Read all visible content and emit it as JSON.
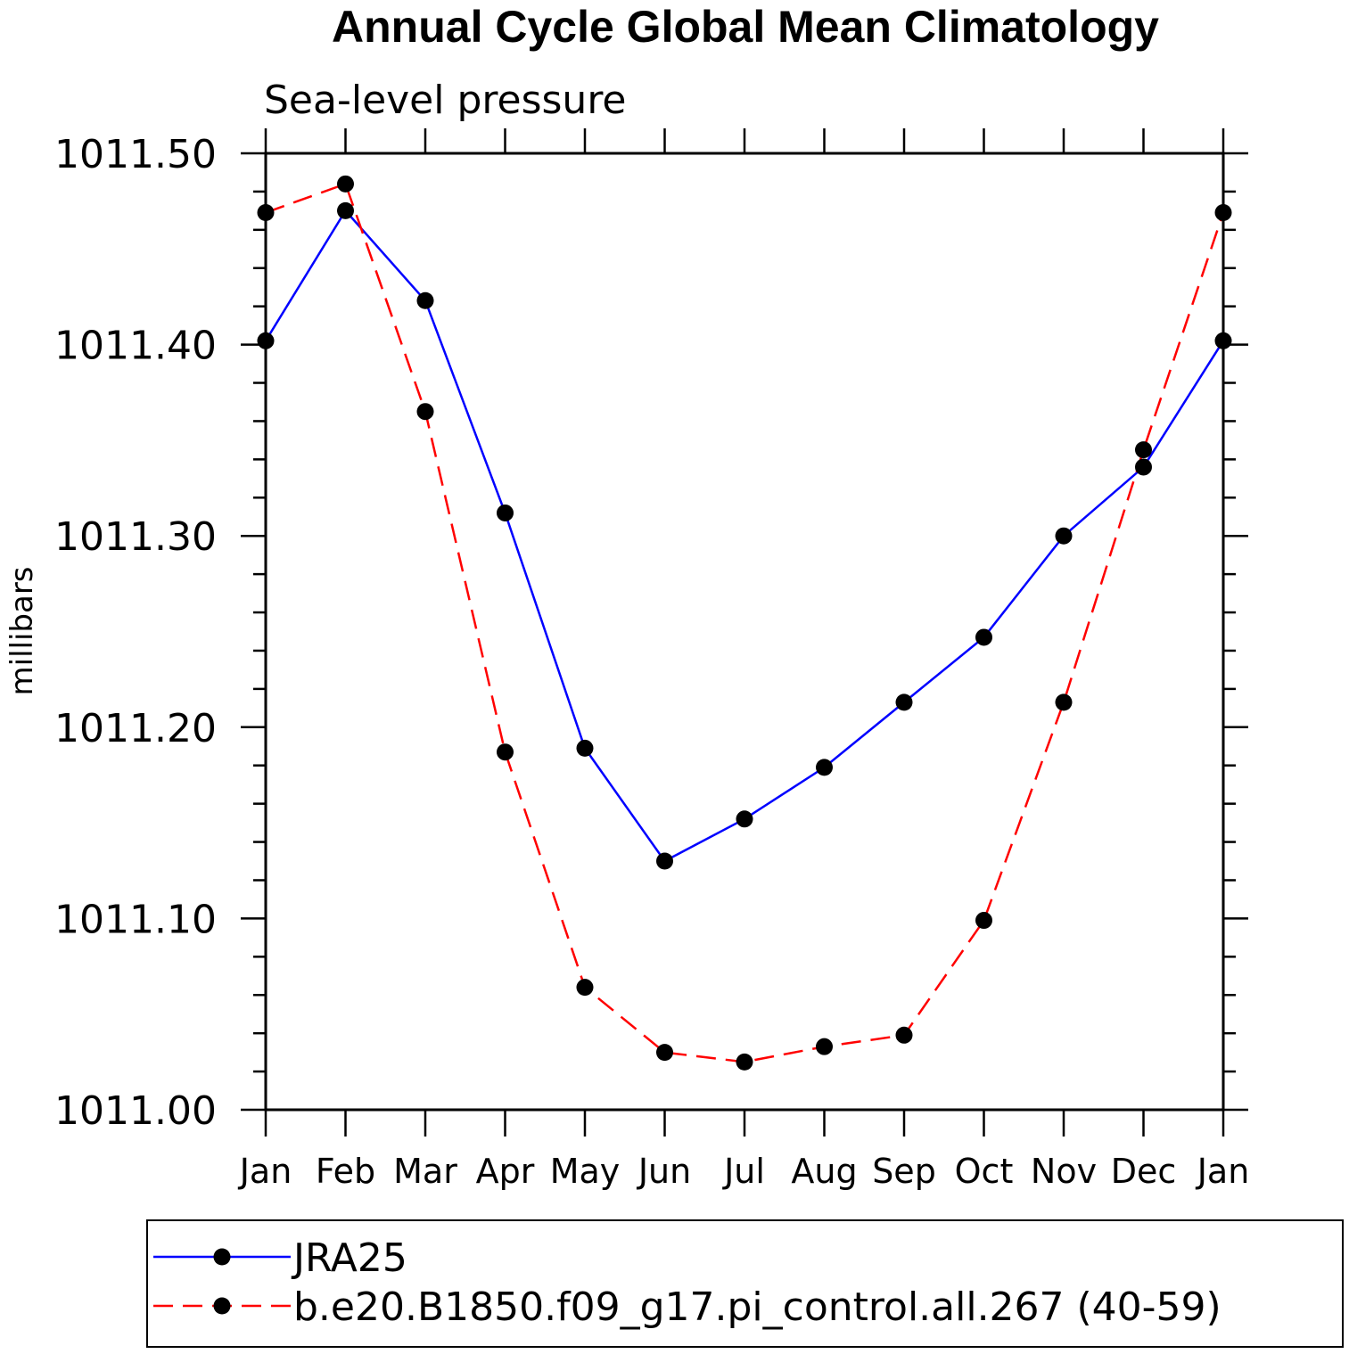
{
  "chart_data": {
    "type": "line",
    "title": "Annual Cycle Global Mean Climatology",
    "subtitle": "Sea-level pressure",
    "xlabel": "",
    "ylabel": "millibars",
    "ylim": [
      1011.0,
      1011.5
    ],
    "yticks": [
      "1011.00",
      "1011.10",
      "1011.20",
      "1011.30",
      "1011.40",
      "1011.50"
    ],
    "categories": [
      "Jan",
      "Feb",
      "Mar",
      "Apr",
      "May",
      "Jun",
      "Jul",
      "Aug",
      "Sep",
      "Oct",
      "Nov",
      "Dec",
      "Jan"
    ],
    "series": [
      {
        "name": "JRA25",
        "color": "#0000ff",
        "dashed": false,
        "values": [
          1011.402,
          1011.47,
          1011.423,
          1011.312,
          1011.189,
          1011.13,
          1011.152,
          1011.179,
          1011.213,
          1011.247,
          1011.3,
          1011.336,
          1011.402
        ]
      },
      {
        "name": "b.e20.B1850.f09_g17.pi_control.all.267 (40-59)",
        "color": "#ff0000",
        "dashed": true,
        "values": [
          1011.469,
          1011.484,
          1011.365,
          1011.187,
          1011.064,
          1011.03,
          1011.025,
          1011.033,
          1011.039,
          1011.099,
          1011.213,
          1011.345,
          1011.469
        ]
      }
    ],
    "legend": "bottom",
    "grid": false
  }
}
